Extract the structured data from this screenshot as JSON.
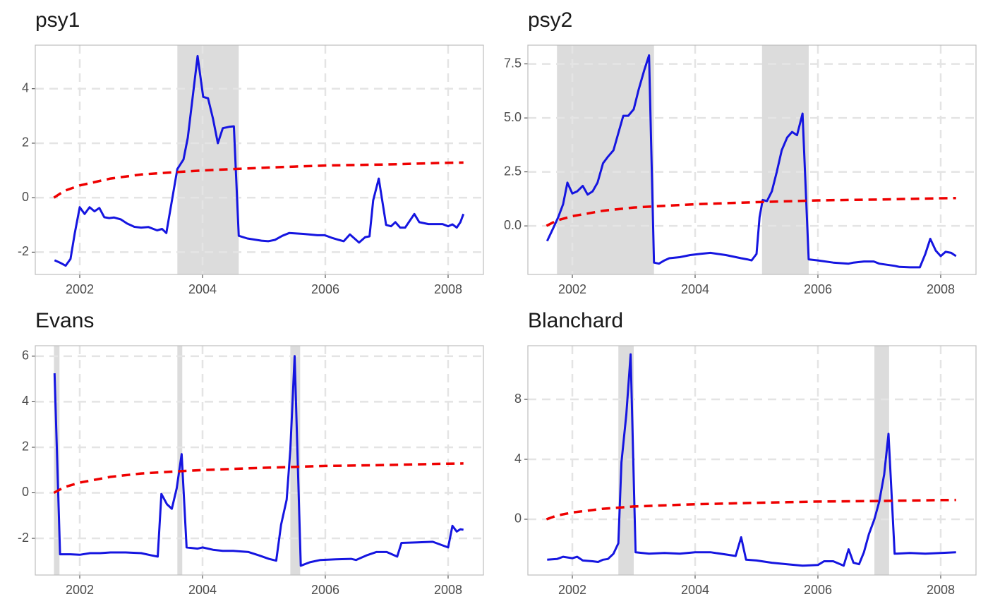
{
  "chart_data": [
    {
      "type": "line",
      "title": "psy1",
      "grid": true,
      "shade_color": "#dcdcdc",
      "xlim": [
        2001.276,
        2008.575
      ],
      "ylim": [
        -2.82,
        5.6
      ],
      "xticks": [
        2002,
        2004,
        2006,
        2008
      ],
      "yticks": [
        -2,
        0,
        2,
        4
      ],
      "shaded": [
        [
          2003.59,
          2004.59
        ]
      ],
      "series": [
        {
          "color": "#1515e0",
          "dashed": false,
          "x": [
            2001.59,
            2001.69,
            2001.77,
            2001.85,
            2001.92,
            2002.0,
            2002.08,
            2002.16,
            2002.24,
            2002.32,
            2002.4,
            2002.48,
            2002.56,
            2002.67,
            2002.77,
            2002.89,
            2003.0,
            2003.12,
            2003.26,
            2003.34,
            2003.41,
            2003.59,
            2003.69,
            2003.76,
            2003.92,
            2004.01,
            2004.09,
            2004.17,
            2004.25,
            2004.33,
            2004.43,
            2004.51,
            2004.59,
            2004.73,
            2004.96,
            2005.07,
            2005.18,
            2005.3,
            2005.41,
            2005.64,
            2005.87,
            2005.99,
            2006.1,
            2006.22,
            2006.3,
            2006.4,
            2006.55,
            2006.65,
            2006.72,
            2006.78,
            2006.87,
            2006.99,
            2007.07,
            2007.14,
            2007.22,
            2007.3,
            2007.45,
            2007.53,
            2007.68,
            2007.91,
            2008.0,
            2008.07,
            2008.14,
            2008.2,
            2008.25
          ],
          "values": [
            -2.3,
            -2.4,
            -2.5,
            -2.25,
            -1.3,
            -0.35,
            -0.6,
            -0.35,
            -0.5,
            -0.38,
            -0.72,
            -0.75,
            -0.73,
            -0.8,
            -0.95,
            -1.07,
            -1.1,
            -1.08,
            -1.2,
            -1.15,
            -1.3,
            1.05,
            1.4,
            2.2,
            5.2,
            3.7,
            3.65,
            2.9,
            2.0,
            2.55,
            2.6,
            2.62,
            -1.4,
            -1.5,
            -1.58,
            -1.6,
            -1.55,
            -1.4,
            -1.3,
            -1.33,
            -1.38,
            -1.38,
            -1.47,
            -1.55,
            -1.6,
            -1.35,
            -1.65,
            -1.45,
            -1.42,
            -0.1,
            0.7,
            -1.0,
            -1.05,
            -0.9,
            -1.1,
            -1.1,
            -0.6,
            -0.9,
            -0.97,
            -0.97,
            -1.05,
            -0.98,
            -1.1,
            -0.9,
            -0.6
          ]
        },
        {
          "color": "#ee0000",
          "dashed": true,
          "x": [
            2001.58,
            2001.75,
            2002,
            2002.5,
            2003,
            2003.5,
            2004,
            2004.5,
            2005,
            2005.5,
            2006,
            2006.5,
            2007,
            2007.5,
            2008,
            2008.25
          ],
          "values": [
            0,
            0.25,
            0.45,
            0.7,
            0.85,
            0.93,
            1.0,
            1.05,
            1.1,
            1.14,
            1.18,
            1.2,
            1.22,
            1.25,
            1.28,
            1.29
          ]
        }
      ]
    },
    {
      "type": "line",
      "title": "psy2",
      "grid": true,
      "shade_color": "#dcdcdc",
      "xlim": [
        2001.276,
        2008.575
      ],
      "ylim": [
        -2.25,
        8.37
      ],
      "xticks": [
        2002,
        2004,
        2006,
        2008
      ],
      "yticks": [
        {
          "value": 0,
          "label": "0.0"
        },
        2.5,
        {
          "value": 5,
          "label": "5.0"
        },
        7.5
      ],
      "shaded": [
        [
          2001.75,
          2003.33
        ],
        [
          2005.09,
          2005.85
        ]
      ],
      "series": [
        {
          "color": "#1515e0",
          "dashed": false,
          "x": [
            2001.59,
            2001.69,
            2001.77,
            2001.85,
            2001.92,
            2002.0,
            2002.08,
            2002.17,
            2002.25,
            2002.33,
            2002.41,
            2002.5,
            2002.58,
            2002.67,
            2002.75,
            2002.83,
            2002.91,
            2003.0,
            2003.08,
            2003.17,
            2003.25,
            2003.33,
            2003.41,
            2003.5,
            2003.58,
            2003.75,
            2003.92,
            2004.08,
            2004.25,
            2004.5,
            2004.75,
            2004.85,
            2004.92,
            2005.0,
            2005.05,
            2005.1,
            2005.17,
            2005.25,
            2005.33,
            2005.41,
            2005.5,
            2005.58,
            2005.66,
            2005.75,
            2005.85,
            2006.0,
            2006.25,
            2006.5,
            2006.58,
            2006.75,
            2006.91,
            2007.0,
            2007.25,
            2007.33,
            2007.5,
            2007.66,
            2007.75,
            2007.83,
            2007.92,
            2008.0,
            2008.08,
            2008.17,
            2008.25
          ],
          "values": [
            -0.7,
            -0.1,
            0.4,
            1.0,
            2.0,
            1.5,
            1.6,
            1.85,
            1.45,
            1.6,
            2.0,
            2.9,
            3.2,
            3.5,
            4.3,
            5.1,
            5.1,
            5.4,
            6.3,
            7.2,
            7.9,
            -1.7,
            -1.75,
            -1.6,
            -1.5,
            -1.45,
            -1.35,
            -1.3,
            -1.25,
            -1.35,
            -1.5,
            -1.55,
            -1.6,
            -1.3,
            0.4,
            1.2,
            1.15,
            1.6,
            2.5,
            3.5,
            4.1,
            4.35,
            4.2,
            5.2,
            -1.55,
            -1.6,
            -1.7,
            -1.75,
            -1.7,
            -1.65,
            -1.65,
            -1.75,
            -1.85,
            -1.9,
            -1.92,
            -1.92,
            -1.3,
            -0.6,
            -1.15,
            -1.4,
            -1.2,
            -1.25,
            -1.4
          ]
        },
        {
          "color": "#ee0000",
          "dashed": true,
          "x": [
            2001.58,
            2001.75,
            2002,
            2002.5,
            2003,
            2003.5,
            2004,
            2004.5,
            2005,
            2005.5,
            2006,
            2006.5,
            2007,
            2007.5,
            2008,
            2008.25
          ],
          "values": [
            0,
            0.25,
            0.45,
            0.7,
            0.85,
            0.93,
            1.0,
            1.05,
            1.1,
            1.14,
            1.18,
            1.2,
            1.22,
            1.25,
            1.28,
            1.29
          ]
        }
      ]
    },
    {
      "type": "line",
      "title": "Evans",
      "grid": true,
      "shade_color": "#dcdcdc",
      "xlim": [
        2001.276,
        2008.575
      ],
      "ylim": [
        -3.61,
        6.46
      ],
      "xticks": [
        2002,
        2004,
        2006,
        2008
      ],
      "yticks": [
        -2,
        0,
        2,
        4,
        6
      ],
      "shaded": [
        [
          2001.58,
          2001.67
        ],
        [
          2003.59,
          2003.67
        ],
        [
          2005.43,
          2005.59
        ]
      ],
      "series": [
        {
          "color": "#1515e0",
          "dashed": false,
          "x": [
            2001.59,
            2001.68,
            2001.85,
            2002.0,
            2002.17,
            2002.33,
            2002.5,
            2002.75,
            2003.0,
            2003.17,
            2003.27,
            2003.33,
            2003.42,
            2003.5,
            2003.58,
            2003.66,
            2003.74,
            2003.92,
            2004.0,
            2004.17,
            2004.33,
            2004.5,
            2004.75,
            2004.92,
            2005.08,
            2005.2,
            2005.28,
            2005.37,
            2005.43,
            2005.5,
            2005.6,
            2005.75,
            2005.92,
            2006.17,
            2006.42,
            2006.5,
            2006.67,
            2006.83,
            2007.0,
            2007.17,
            2007.24,
            2007.5,
            2007.75,
            2008.0,
            2008.07,
            2008.14,
            2008.2,
            2008.25
          ],
          "values": [
            5.25,
            -2.7,
            -2.7,
            -2.72,
            -2.65,
            -2.65,
            -2.62,
            -2.62,
            -2.65,
            -2.75,
            -2.8,
            -0.05,
            -0.5,
            -0.7,
            0.2,
            1.7,
            -2.4,
            -2.45,
            -2.4,
            -2.5,
            -2.55,
            -2.55,
            -2.6,
            -2.75,
            -2.9,
            -2.98,
            -1.4,
            -0.3,
            1.9,
            6.0,
            -3.2,
            -3.05,
            -2.95,
            -2.92,
            -2.9,
            -2.95,
            -2.75,
            -2.6,
            -2.6,
            -2.8,
            -2.2,
            -2.18,
            -2.15,
            -2.4,
            -1.45,
            -1.7,
            -1.6,
            -1.62
          ]
        },
        {
          "color": "#ee0000",
          "dashed": true,
          "x": [
            2001.58,
            2001.75,
            2002,
            2002.5,
            2003,
            2003.5,
            2004,
            2004.5,
            2005,
            2005.5,
            2006,
            2006.5,
            2007,
            2007.5,
            2008,
            2008.25
          ],
          "values": [
            0,
            0.25,
            0.45,
            0.7,
            0.85,
            0.93,
            1.0,
            1.05,
            1.1,
            1.14,
            1.18,
            1.2,
            1.22,
            1.25,
            1.28,
            1.29
          ]
        }
      ]
    },
    {
      "type": "line",
      "title": "Blanchard",
      "grid": true,
      "shade_color": "#dcdcdc",
      "xlim": [
        2001.276,
        2008.575
      ],
      "ylim": [
        -3.72,
        11.58
      ],
      "xticks": [
        2002,
        2004,
        2006,
        2008
      ],
      "yticks": [
        0,
        4,
        8
      ],
      "shaded": [
        [
          2002.75,
          2003.0
        ],
        [
          2006.92,
          2007.16
        ]
      ],
      "series": [
        {
          "color": "#1515e0",
          "dashed": false,
          "x": [
            2001.59,
            2001.75,
            2001.85,
            2002.0,
            2002.08,
            2002.17,
            2002.33,
            2002.42,
            2002.5,
            2002.58,
            2002.67,
            2002.75,
            2002.8,
            2002.88,
            2002.95,
            2003.03,
            2003.25,
            2003.5,
            2003.75,
            2004.0,
            2004.25,
            2004.5,
            2004.66,
            2004.75,
            2004.83,
            2005.0,
            2005.25,
            2005.5,
            2005.75,
            2006.0,
            2006.1,
            2006.25,
            2006.42,
            2006.5,
            2006.58,
            2006.67,
            2006.75,
            2006.83,
            2006.92,
            2007.0,
            2007.08,
            2007.15,
            2007.25,
            2007.5,
            2007.75,
            2008.0,
            2008.25
          ],
          "values": [
            -2.7,
            -2.65,
            -2.5,
            -2.6,
            -2.5,
            -2.75,
            -2.8,
            -2.85,
            -2.7,
            -2.65,
            -2.3,
            -1.6,
            3.8,
            7.0,
            11.0,
            -2.2,
            -2.3,
            -2.25,
            -2.3,
            -2.2,
            -2.2,
            -2.35,
            -2.45,
            -1.2,
            -2.7,
            -2.75,
            -2.9,
            -3.0,
            -3.1,
            -3.05,
            -2.8,
            -2.8,
            -3.1,
            -2.0,
            -2.9,
            -3.0,
            -2.2,
            -1.0,
            0.0,
            1.2,
            3.0,
            5.7,
            -2.3,
            -2.25,
            -2.3,
            -2.25,
            -2.2
          ]
        },
        {
          "color": "#ee0000",
          "dashed": true,
          "x": [
            2001.58,
            2001.75,
            2002,
            2002.5,
            2003,
            2003.5,
            2004,
            2004.5,
            2005,
            2005.5,
            2006,
            2006.5,
            2007,
            2007.5,
            2008,
            2008.25
          ],
          "values": [
            0,
            0.25,
            0.45,
            0.7,
            0.85,
            0.93,
            1.0,
            1.05,
            1.1,
            1.14,
            1.18,
            1.2,
            1.22,
            1.25,
            1.28,
            1.29
          ]
        }
      ]
    }
  ]
}
